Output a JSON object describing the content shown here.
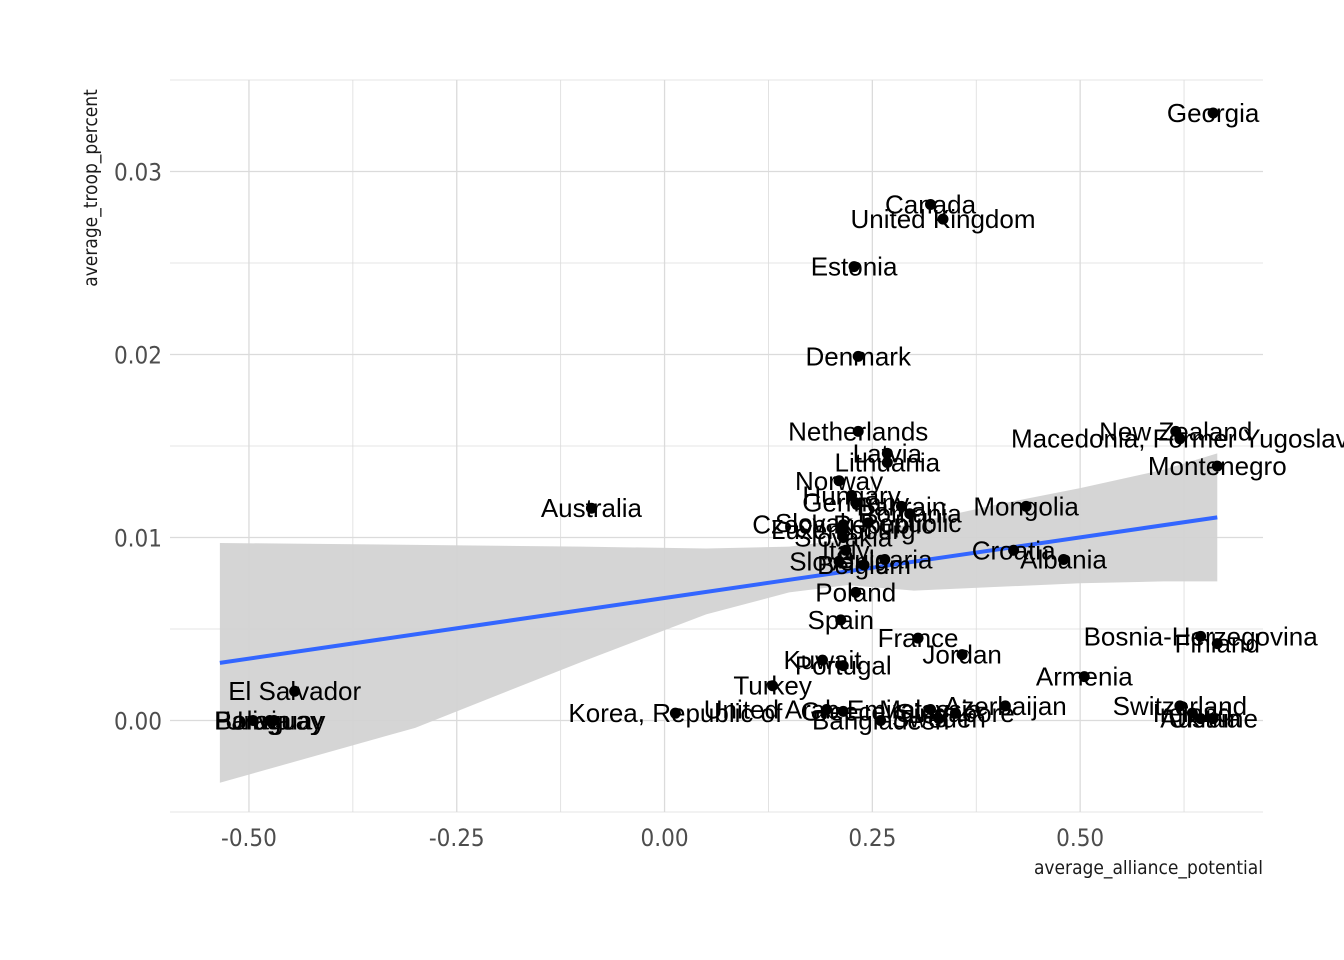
{
  "chart_data": {
    "type": "scatter",
    "xlabel": "average_alliance_potential",
    "ylabel": "average_troop_percent",
    "xlim": [
      -0.595,
      0.72
    ],
    "ylim": [
      -0.005,
      0.035
    ],
    "x_ticks": [
      -0.5,
      -0.25,
      0.0,
      0.25,
      0.5
    ],
    "x_tick_labels": [
      "-0.50",
      "-0.25",
      "0.00",
      "0.25",
      "0.50"
    ],
    "y_ticks": [
      0.0,
      0.01,
      0.02,
      0.03
    ],
    "y_tick_labels": [
      "0.00",
      "0.01",
      "0.02",
      "0.03"
    ],
    "grid": true,
    "colors": {
      "points": "#000000",
      "fit_line": "#3366FF",
      "confidence_band": "#D3D3D3",
      "grid": "#DBDBDB"
    },
    "fit": {
      "x": [
        -0.535,
        0.665
      ],
      "y": [
        0.00315,
        0.0111
      ],
      "band_x": [
        -0.535,
        -0.3,
        -0.1,
        0.05,
        0.15,
        0.22,
        0.3,
        0.4,
        0.5,
        0.6,
        0.665
      ],
      "band_low": [
        -0.0034,
        -0.0004,
        0.0032,
        0.0058,
        0.007,
        0.0074,
        0.0071,
        0.0073,
        0.0075,
        0.0076,
        0.0076
      ],
      "band_high": [
        0.0097,
        0.0096,
        0.0095,
        0.0094,
        0.0095,
        0.0099,
        0.0108,
        0.0118,
        0.0127,
        0.0137,
        0.0146
      ]
    },
    "points": [
      {
        "label": "Georgia",
        "x": 0.66,
        "y": 0.0332
      },
      {
        "label": "Canada",
        "x": 0.32,
        "y": 0.0282
      },
      {
        "label": "United Kingdom",
        "x": 0.335,
        "y": 0.0274
      },
      {
        "label": "Estonia",
        "x": 0.228,
        "y": 0.0248
      },
      {
        "label": "Denmark",
        "x": 0.233,
        "y": 0.0199
      },
      {
        "label": "Netherlands",
        "x": 0.233,
        "y": 0.0158
      },
      {
        "label": "New Zealand",
        "x": 0.615,
        "y": 0.0158
      },
      {
        "label": "Macedonia, Former Yugoslav",
        "x": 0.62,
        "y": 0.0154
      },
      {
        "label": "Latvia",
        "x": 0.268,
        "y": 0.0146
      },
      {
        "label": "Lithuania",
        "x": 0.268,
        "y": 0.0141
      },
      {
        "label": "Montenegro",
        "x": 0.665,
        "y": 0.0139
      },
      {
        "label": "Norway",
        "x": 0.21,
        "y": 0.0131
      },
      {
        "label": "Hungary",
        "x": 0.225,
        "y": 0.0123
      },
      {
        "label": "Germany",
        "x": 0.23,
        "y": 0.0119
      },
      {
        "label": "Bahrain",
        "x": 0.285,
        "y": 0.0117
      },
      {
        "label": "Mongolia",
        "x": 0.435,
        "y": 0.0117
      },
      {
        "label": "Australia",
        "x": -0.088,
        "y": 0.0116
      },
      {
        "label": "Romania",
        "x": 0.295,
        "y": 0.0113
      },
      {
        "label": "Slovak Republic",
        "x": 0.245,
        "y": 0.0108
      },
      {
        "label": "Czech Republic",
        "x": 0.215,
        "y": 0.0107
      },
      {
        "label": "Luxembourg",
        "x": 0.215,
        "y": 0.0104
      },
      {
        "label": "Slovakia",
        "x": 0.215,
        "y": 0.01
      },
      {
        "label": "Italy",
        "x": 0.218,
        "y": 0.0093
      },
      {
        "label": "Croatia",
        "x": 0.42,
        "y": 0.0093
      },
      {
        "label": "Bulgaria",
        "x": 0.265,
        "y": 0.0088
      },
      {
        "label": "Albania",
        "x": 0.48,
        "y": 0.0088
      },
      {
        "label": "Slovenia",
        "x": 0.21,
        "y": 0.0087
      },
      {
        "label": "Belgium",
        "x": 0.24,
        "y": 0.0085
      },
      {
        "label": "Poland",
        "x": 0.23,
        "y": 0.007
      },
      {
        "label": "Spain",
        "x": 0.212,
        "y": 0.0055
      },
      {
        "label": "Bosnia-Herzegovina",
        "x": 0.645,
        "y": 0.0046
      },
      {
        "label": "France",
        "x": 0.305,
        "y": 0.0045
      },
      {
        "label": "Finland",
        "x": 0.665,
        "y": 0.0042
      },
      {
        "label": "Jordan",
        "x": 0.358,
        "y": 0.0036
      },
      {
        "label": "Kuwait",
        "x": 0.19,
        "y": 0.0033
      },
      {
        "label": "Portugal",
        "x": 0.215,
        "y": 0.003
      },
      {
        "label": "Armenia",
        "x": 0.505,
        "y": 0.0024
      },
      {
        "label": "El Salvador",
        "x": -0.445,
        "y": 0.0016
      },
      {
        "label": "Turkey",
        "x": 0.13,
        "y": 0.0019
      },
      {
        "label": "Azerbaijan",
        "x": 0.41,
        "y": 0.0008
      },
      {
        "label": "Switzerland",
        "x": 0.62,
        "y": 0.0008
      },
      {
        "label": "Ireland",
        "x": 0.635,
        "y": 0.0004
      },
      {
        "label": "Korea, Republic of",
        "x": 0.013,
        "y": 0.0004
      },
      {
        "label": "United Arab Emirates",
        "x": 0.195,
        "y": 0.0006
      },
      {
        "label": "Greece",
        "x": 0.215,
        "y": 0.0005
      },
      {
        "label": "Malaysia",
        "x": 0.32,
        "y": 0.0006
      },
      {
        "label": "Singapore",
        "x": 0.35,
        "y": 0.0004
      },
      {
        "label": "Austria",
        "x": 0.645,
        "y": 0.0001
      },
      {
        "label": "Ukraine",
        "x": 0.66,
        "y": 0.0001
      },
      {
        "label": "Bangladesh",
        "x": 0.26,
        "y": 0.0
      },
      {
        "label": "Sweden",
        "x": 0.33,
        "y": 0.0001
      },
      {
        "label": "Uruguay",
        "x": -0.47,
        "y": 0.0
      },
      {
        "label": "Paraguay",
        "x": -0.475,
        "y": 0.0
      },
      {
        "label": "Bolivia",
        "x": -0.495,
        "y": 0.0
      }
    ]
  }
}
